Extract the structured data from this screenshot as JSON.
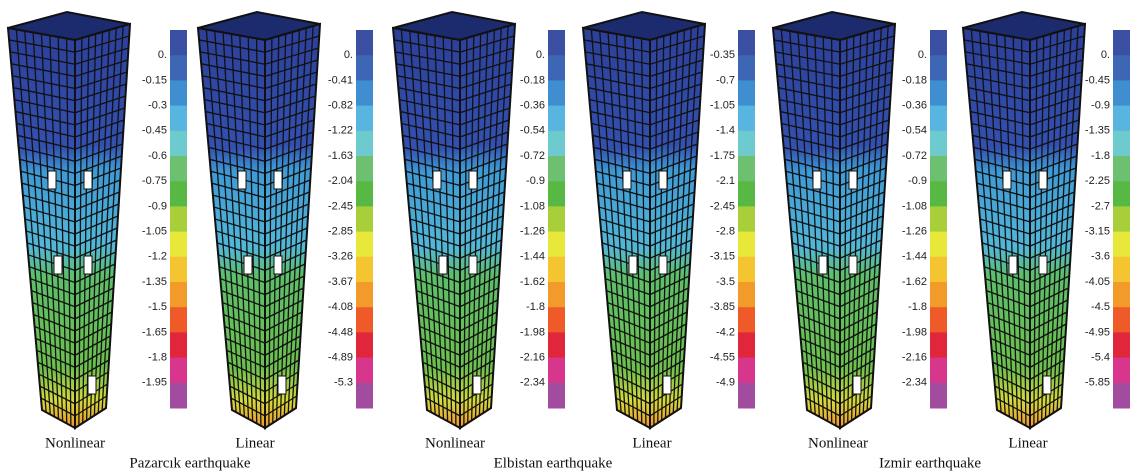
{
  "groups": [
    {
      "name": "Pazarcık earthquake",
      "models": [
        {
          "label": "Nonlinear",
          "scale": [
            "0.",
            "-0.15",
            "-0.3",
            "-0.45",
            "-0.6",
            "-0.75",
            "-0.9",
            "-1.05",
            "-1.2",
            "-1.35",
            "-1.5",
            "-1.65",
            "-1.8",
            "-1.95"
          ]
        },
        {
          "label": "Linear",
          "scale": [
            "0.",
            "-0.41",
            "-0.82",
            "-1.22",
            "-1.63",
            "-2.04",
            "-2.45",
            "-2.85",
            "-3.26",
            "-3.67",
            "-4.08",
            "-4.48",
            "-4.89",
            "-5.3"
          ]
        }
      ]
    },
    {
      "name": "Elbistan earthquake",
      "models": [
        {
          "label": "Nonlinear",
          "scale": [
            "0.",
            "-0.18",
            "-0.36",
            "-0.54",
            "-0.72",
            "-0.9",
            "-1.08",
            "-1.26",
            "-1.44",
            "-1.62",
            "-1.8",
            "-1.98",
            "-2.16",
            "-2.34"
          ]
        },
        {
          "label": "Linear",
          "scale": [
            "-0.35",
            "-0.7",
            "-1.05",
            "-1.4",
            "-1.75",
            "-2.1",
            "-2.45",
            "-2.8",
            "-3.15",
            "-3.5",
            "-3.85",
            "-4.2",
            "-4.55",
            "-4.9"
          ]
        }
      ]
    },
    {
      "name": "Izmir earthquake",
      "models": [
        {
          "label": "Nonlinear",
          "scale": [
            "0.",
            "-0.18",
            "-0.36",
            "-0.54",
            "-0.72",
            "-0.9",
            "-1.08",
            "-1.26",
            "-1.44",
            "-1.62",
            "-1.8",
            "-1.98",
            "-2.16",
            "-2.34"
          ]
        },
        {
          "label": "Linear",
          "scale": [
            "0.",
            "-0.45",
            "-0.9",
            "-1.35",
            "-1.8",
            "-2.25",
            "-2.7",
            "-3.15",
            "-3.6",
            "-4.05",
            "-4.5",
            "-4.95",
            "-5.4",
            "-5.85"
          ]
        }
      ]
    }
  ]
}
